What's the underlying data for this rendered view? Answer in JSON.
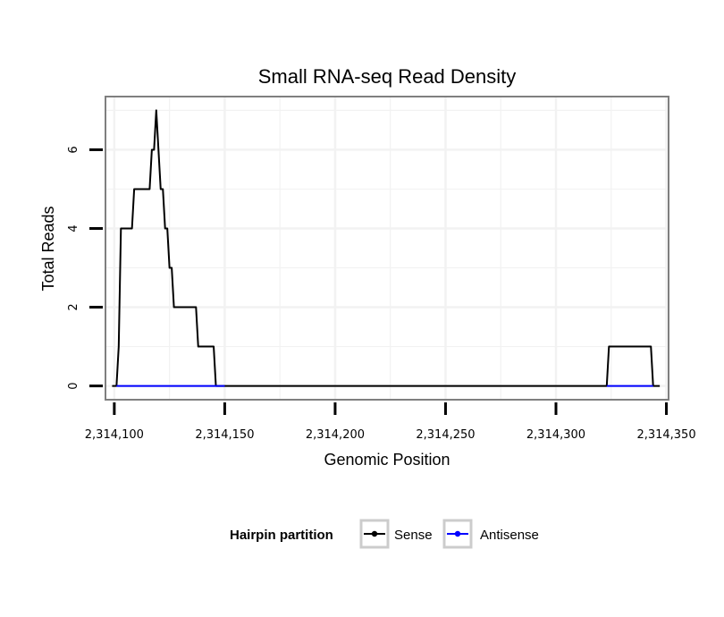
{
  "colors": {
    "sense": "#000000",
    "antisense": "#0000FF",
    "grid": "#F2F2F2",
    "border": "#7F7F7F",
    "legend_key_border": "#CCCCCC"
  },
  "chart_data": {
    "type": "line",
    "title": "Small RNA-seq Read Density",
    "xlabel": "Genomic Position",
    "ylabel": "Total Reads",
    "xlim": [
      2314096,
      2314351
    ],
    "ylim": [
      -0.35,
      7.35
    ],
    "x_ticks": [
      2314100,
      2314150,
      2314200,
      2314250,
      2314300,
      2314350
    ],
    "x_tick_labels": [
      "2,314,100",
      "2,314,150",
      "2,314,200",
      "2,314,250",
      "2,314,300",
      "2,314,350"
    ],
    "y_ticks": [
      0,
      2,
      4,
      6
    ],
    "y_tick_labels": [
      "0",
      "2",
      "4",
      "6"
    ],
    "grid": true,
    "legend": {
      "title": "Hairpin partition",
      "position": "bottom",
      "entries": [
        "Sense",
        "Antisense"
      ]
    },
    "series": [
      {
        "name": "Sense",
        "color": "#000000",
        "points": [
          [
            2314099,
            0
          ],
          [
            2314101,
            0
          ],
          [
            2314102,
            1
          ],
          [
            2314103,
            4
          ],
          [
            2314104,
            4
          ],
          [
            2314107,
            4
          ],
          [
            2314108,
            4
          ],
          [
            2314109,
            5
          ],
          [
            2314110,
            5
          ],
          [
            2314116,
            5
          ],
          [
            2314117,
            6
          ],
          [
            2314118,
            6
          ],
          [
            2314119,
            7
          ],
          [
            2314120,
            6
          ],
          [
            2314121,
            5
          ],
          [
            2314122,
            5
          ],
          [
            2314123,
            4
          ],
          [
            2314124,
            4
          ],
          [
            2314125,
            3
          ],
          [
            2314126,
            3
          ],
          [
            2314127,
            2
          ],
          [
            2314128,
            2
          ],
          [
            2314137,
            2
          ],
          [
            2314138,
            1
          ],
          [
            2314139,
            1
          ],
          [
            2314145,
            1
          ],
          [
            2314146,
            0
          ],
          [
            2314300,
            0
          ],
          [
            2314323,
            0
          ],
          [
            2314324,
            1
          ],
          [
            2314325,
            1
          ],
          [
            2314343,
            1
          ],
          [
            2314344,
            0
          ],
          [
            2314347,
            0
          ]
        ]
      },
      {
        "name": "Antisense",
        "color": "#0000FF",
        "points": [
          [
            2314101,
            0
          ],
          [
            2314150,
            0
          ]
        ],
        "extra_segments": [
          [
            [
              2314323,
              0
            ],
            [
              2314344,
              0
            ]
          ]
        ]
      }
    ]
  }
}
